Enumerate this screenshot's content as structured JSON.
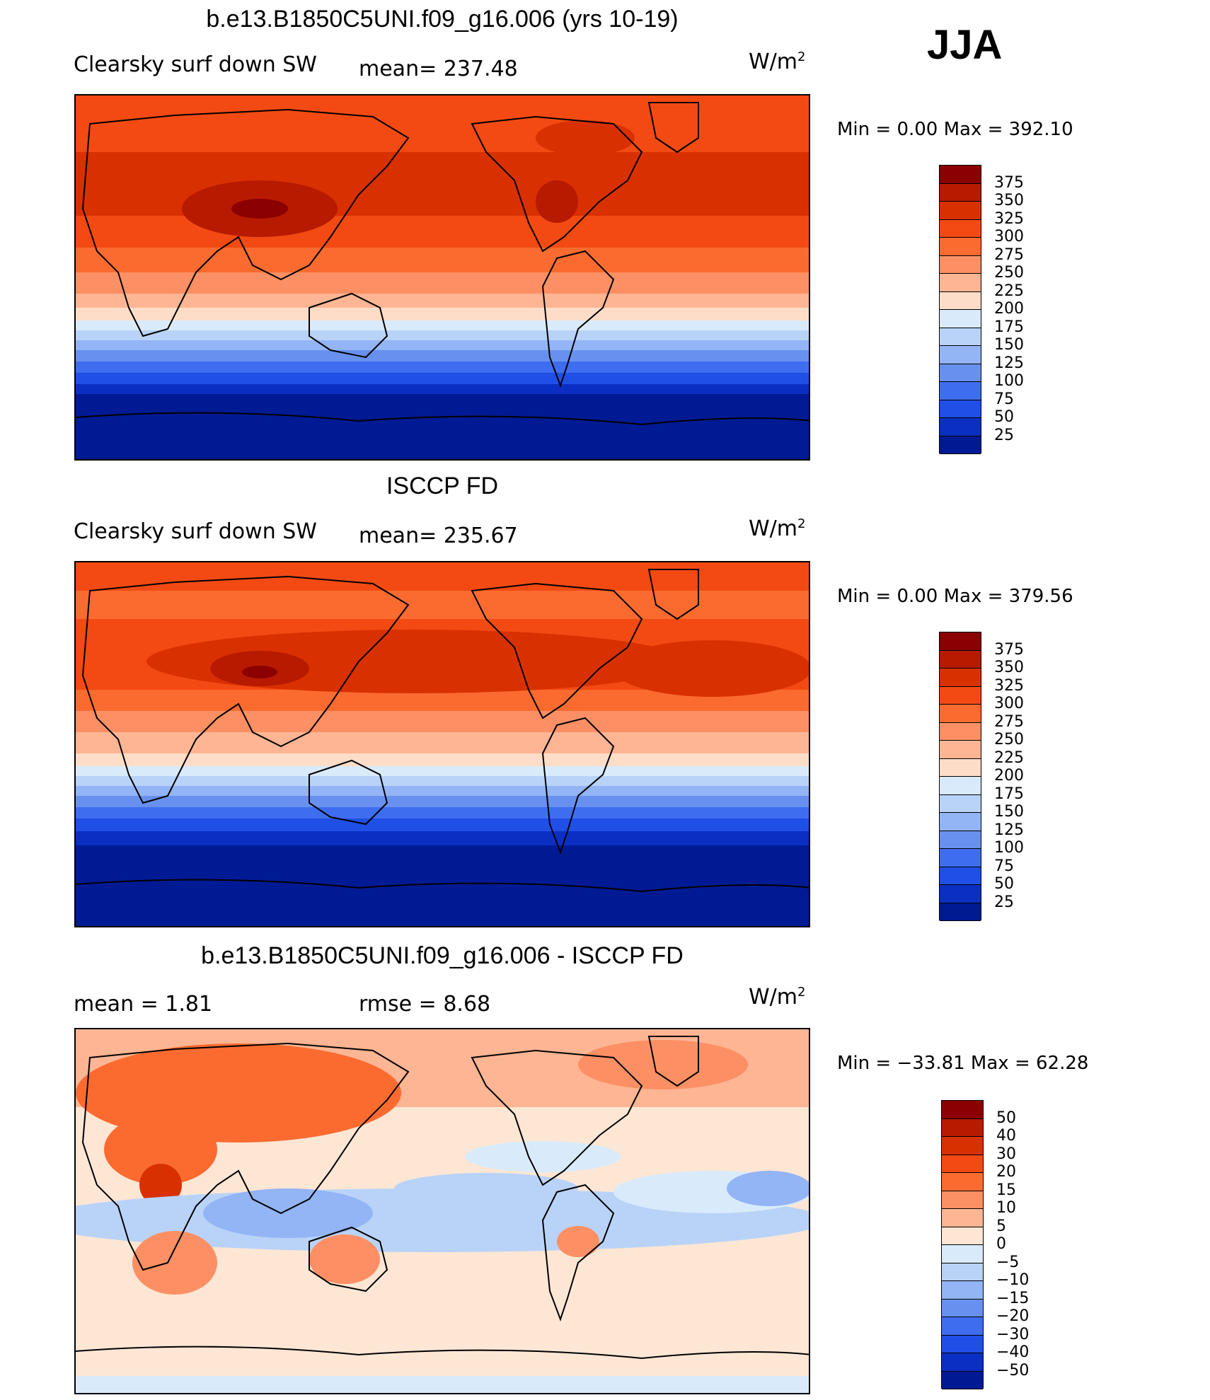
{
  "season": "JJA",
  "panels": [
    {
      "title": "b.e13.B1850C5UNI.f09_g16.006 (yrs 10-19)",
      "left_label": "Clearsky surf down SW",
      "center_label": "mean= 237.48",
      "units": "W/m",
      "units_exp": "2",
      "minmax": "Min =    0.00 Max =  392.10",
      "legend_labels": [
        "375",
        "350",
        "325",
        "300",
        "275",
        "250",
        "225",
        "200",
        "175",
        "150",
        "125",
        "100",
        "75",
        "50",
        "25"
      ]
    },
    {
      "title": "ISCCP FD",
      "left_label": "Clearsky surf down SW",
      "center_label": "mean= 235.67",
      "units": "W/m",
      "units_exp": "2",
      "minmax": "Min =    0.00 Max =  379.56",
      "legend_labels": [
        "375",
        "350",
        "325",
        "300",
        "275",
        "250",
        "225",
        "200",
        "175",
        "150",
        "125",
        "100",
        "75",
        "50",
        "25"
      ]
    },
    {
      "title": "b.e13.B1850C5UNI.f09_g16.006 - ISCCP FD",
      "left_label": "mean =    1.81",
      "center_label": "rmse =    8.68",
      "units": "W/m",
      "units_exp": "2",
      "minmax": "Min = −33.81 Max =   62.28",
      "legend_labels": [
        "50",
        "40",
        "30",
        "20",
        "15",
        "10",
        "5",
        "0",
        "−5",
        "−10",
        "−15",
        "−20",
        "−30",
        "−40",
        "−50"
      ]
    }
  ],
  "colors": {
    "abs_scale": [
      "#8b0000",
      "#b81a00",
      "#d93000",
      "#f24a12",
      "#fb6b30",
      "#fc9064",
      "#fdb594",
      "#fdddc8",
      "#d9ebfb",
      "#b9d3f8",
      "#93b4f5",
      "#6891ef",
      "#3f6df0",
      "#1f4fe6",
      "#0a2fc2",
      "#001a94"
    ],
    "diff_scale": [
      "#8b0000",
      "#b81a00",
      "#d93000",
      "#f24a12",
      "#fb6b30",
      "#fc9064",
      "#fdb594",
      "#fde6d4",
      "#d9ebfb",
      "#b9d3f8",
      "#93b4f5",
      "#6891ef",
      "#3f6df0",
      "#1f4fe6",
      "#0a2fc2",
      "#001a94"
    ]
  }
}
